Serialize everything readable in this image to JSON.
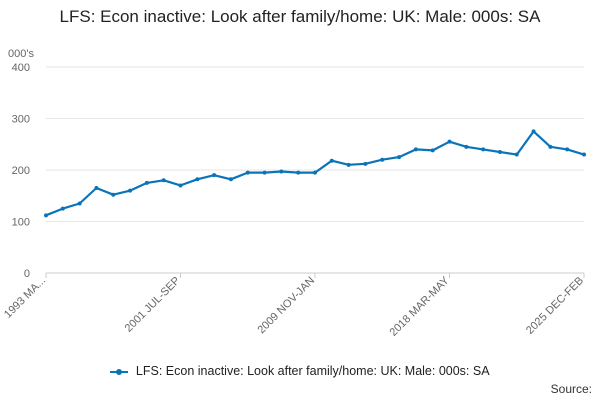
{
  "chart_data": {
    "type": "line",
    "title": "LFS: Econ inactive: Look after family/home: UK: Male: 000s: SA",
    "ylabel": "000's",
    "xlabel": "",
    "ylim": [
      0,
      400
    ],
    "yticks": [
      0,
      100,
      200,
      300,
      400
    ],
    "xtick_labels": [
      "1993 MA...",
      "2001 JUL-SEP",
      "2009 NOV-JAN",
      "2018 MAR-MAY",
      "2025 DEC-FEB"
    ],
    "grid": true,
    "legend_position": "bottom",
    "color": "#0a74b8",
    "series": [
      {
        "name": "LFS: Econ inactive: Look after family/home: UK: Male: 000s: SA",
        "x": [
          "1993",
          "1994",
          "1995",
          "1996",
          "1997",
          "1998",
          "1999",
          "2000",
          "2001",
          "2002",
          "2003",
          "2004",
          "2005",
          "2006",
          "2007",
          "2008",
          "2009",
          "2010",
          "2011",
          "2012",
          "2013",
          "2014",
          "2015",
          "2016",
          "2017",
          "2018",
          "2019",
          "2020",
          "2021",
          "2022",
          "2023",
          "2024",
          "2025"
        ],
        "values": [
          112,
          125,
          135,
          165,
          152,
          160,
          175,
          180,
          170,
          182,
          190,
          182,
          195,
          195,
          197,
          195,
          195,
          218,
          210,
          212,
          220,
          225,
          240,
          238,
          255,
          245,
          240,
          235,
          230,
          275,
          245,
          240,
          230
        ]
      }
    ]
  },
  "legend": {
    "label": "LFS: Econ inactive: Look after family/home: UK: Male: 000s: SA"
  },
  "source_label": "Source:"
}
